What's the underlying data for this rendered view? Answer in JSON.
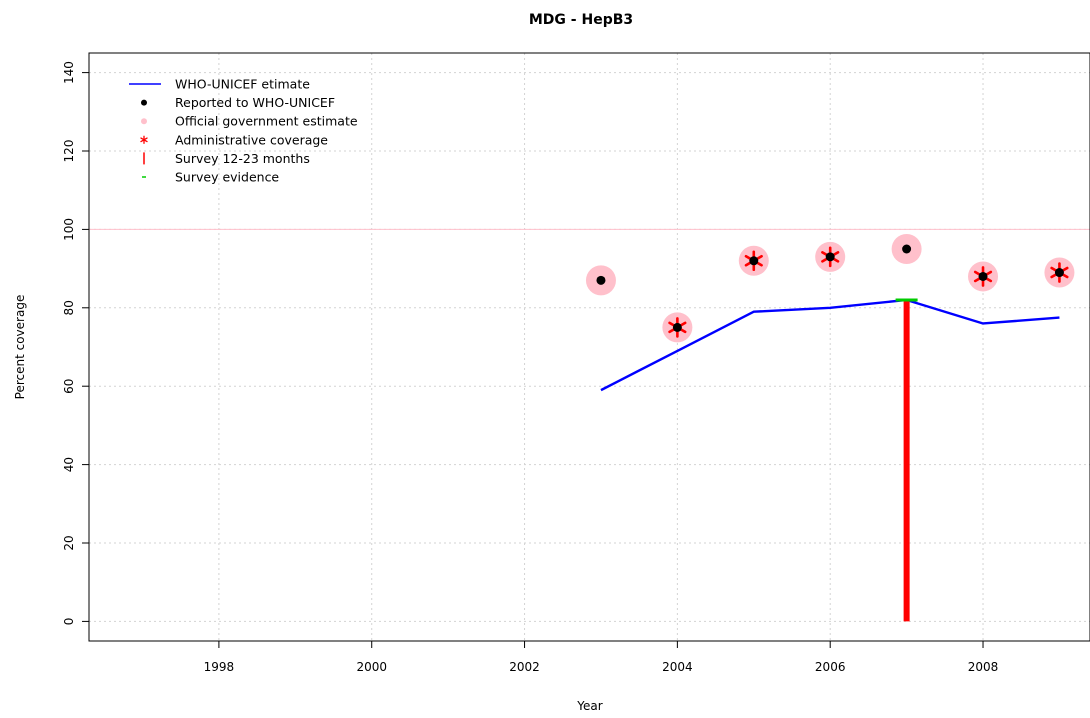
{
  "chart_data": {
    "type": "line",
    "title": "MDG  -  HepB3",
    "xlabel": "Year",
    "ylabel": "Percent coverage",
    "xlim": [
      1996.3,
      2009.4
    ],
    "ylim": [
      -5,
      145
    ],
    "x_ticks": [
      1998,
      2000,
      2002,
      2004,
      2006,
      2008
    ],
    "y_ticks": [
      0,
      20,
      40,
      60,
      80,
      100,
      120,
      140
    ],
    "grid": true,
    "reference_line": {
      "y": 100,
      "color": "#ffc0cb"
    },
    "legend": {
      "position": "top-left",
      "entries": [
        {
          "label": "WHO-UNICEF etimate",
          "symbol": "line",
          "color": "#0000ff"
        },
        {
          "label": "Reported to WHO-UNICEF",
          "symbol": "dot",
          "color": "#000000"
        },
        {
          "label": "Official government estimate",
          "symbol": "dot",
          "color": "#ffc0cb"
        },
        {
          "label": "Administrative coverage",
          "symbol": "star",
          "color": "#ff0000"
        },
        {
          "label": "Survey 12-23 months",
          "symbol": "bar",
          "color": "#ff0000"
        },
        {
          "label": "Survey evidence",
          "symbol": "dash",
          "color": "#00cc00"
        }
      ]
    },
    "series": [
      {
        "name": "WHO-UNICEF etimate",
        "kind": "line",
        "color": "#0000ff",
        "x": [
          2003,
          2004,
          2005,
          2006,
          2007,
          2008,
          2009
        ],
        "values": [
          59,
          69,
          79,
          80,
          82,
          76,
          77.5
        ]
      },
      {
        "name": "Reported to WHO-UNICEF",
        "kind": "point",
        "color": "#000000",
        "x": [
          2003,
          2004,
          2005,
          2006,
          2007,
          2008,
          2009
        ],
        "values": [
          87,
          75,
          92,
          93,
          95,
          88,
          89
        ]
      },
      {
        "name": "Official government estimate",
        "kind": "point",
        "color": "#ffc0cb",
        "x": [
          2003,
          2004,
          2005,
          2006,
          2007,
          2008,
          2009
        ],
        "values": [
          87,
          75,
          92,
          93,
          95,
          88,
          89
        ]
      },
      {
        "name": "Administrative coverage",
        "kind": "star",
        "color": "#ff0000",
        "x": [
          2004,
          2005,
          2006,
          2008,
          2009
        ],
        "values": [
          75,
          92,
          93,
          88,
          89
        ]
      },
      {
        "name": "Survey 12-23 months",
        "kind": "bar",
        "color": "#ff0000",
        "x": [
          2007
        ],
        "values": [
          82
        ]
      },
      {
        "name": "Survey evidence",
        "kind": "dash",
        "color": "#00cc00",
        "x": [
          2007
        ],
        "values": [
          82
        ]
      }
    ]
  }
}
